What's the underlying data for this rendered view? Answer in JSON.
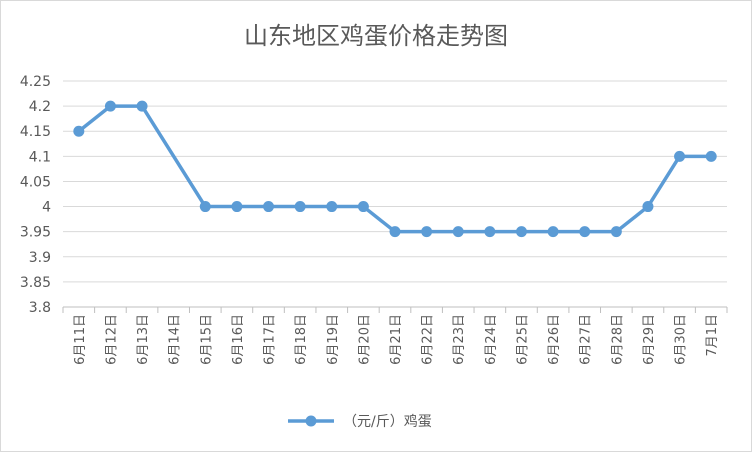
{
  "chart_data": {
    "type": "line",
    "title": "山东地区鸡蛋价格走势图",
    "xlabel": "",
    "ylabel": "",
    "ylim": [
      3.8,
      4.25
    ],
    "yticks": [
      "3.8",
      "3.85",
      "3.9",
      "3.95",
      "4",
      "4.05",
      "4.1",
      "4.15",
      "4.2",
      "4.25"
    ],
    "grid": true,
    "legend_position": "bottom",
    "categories": [
      "6月11日",
      "6月12日",
      "6月13日",
      "6月14日",
      "6月15日",
      "6月16日",
      "6月17日",
      "6月18日",
      "6月19日",
      "6月20日",
      "6月21日",
      "6月22日",
      "6月23日",
      "6月24日",
      "6月25日",
      "6月26日",
      "6月27日",
      "6月28日",
      "6月29日",
      "6月30日",
      "7月1日"
    ],
    "series": [
      {
        "name": "（元/斤）鸡蛋",
        "color": "#5b9bd5",
        "values": [
          4.15,
          4.2,
          4.2,
          null,
          4.0,
          4.0,
          4.0,
          4.0,
          4.0,
          4.0,
          3.95,
          3.95,
          3.95,
          3.95,
          3.95,
          3.95,
          3.95,
          3.95,
          4.0,
          4.1,
          4.1
        ]
      }
    ]
  }
}
